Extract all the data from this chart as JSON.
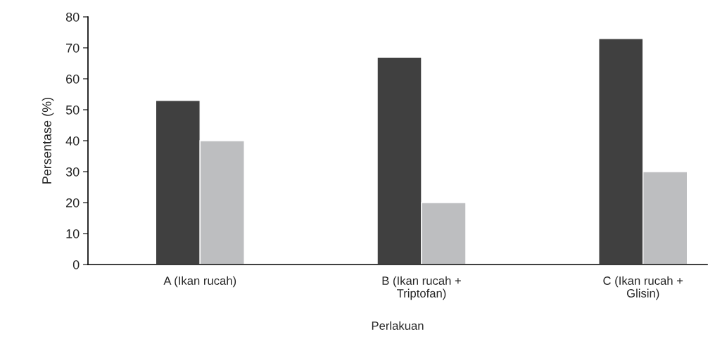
{
  "chart_data": {
    "type": "bar",
    "xlabel": "Perlakuan",
    "ylabel": "Persentase (%)",
    "categories": [
      "A (Ikan rucah)",
      "B (Ikan rucah +\nTriptofan)",
      "C (Ikan rucah +\nGlisin)"
    ],
    "series": [
      {
        "color": "#404040",
        "values": [
          53,
          67,
          73
        ]
      },
      {
        "color": "#bdbec0",
        "values": [
          40,
          20,
          30
        ]
      }
    ],
    "ylim": [
      0,
      80
    ],
    "yticks": [
      0,
      10,
      20,
      30,
      40,
      50,
      60,
      70,
      80
    ],
    "grid": false,
    "legend": false
  }
}
